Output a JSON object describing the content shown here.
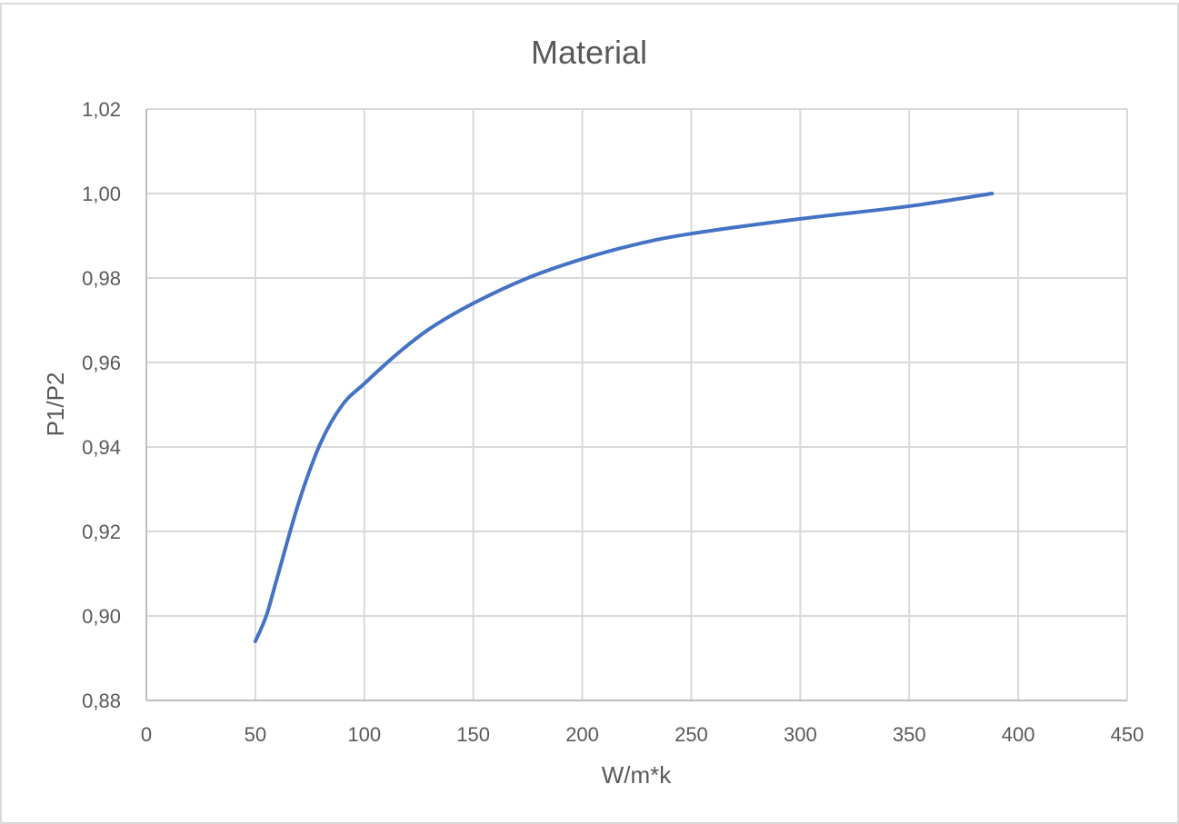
{
  "chart_data": {
    "type": "line",
    "title": "Material",
    "xlabel": "W/m*k",
    "ylabel": "P1/P2",
    "xlim": [
      0,
      450
    ],
    "ylim": [
      0.88,
      1.02
    ],
    "x_ticks": [
      0,
      50,
      100,
      150,
      200,
      250,
      300,
      350,
      400,
      450
    ],
    "x_tick_labels": [
      "0",
      "50",
      "100",
      "150",
      "200",
      "250",
      "300",
      "350",
      "400",
      "450"
    ],
    "y_ticks": [
      0.88,
      0.9,
      0.92,
      0.94,
      0.96,
      0.98,
      1.0,
      1.02
    ],
    "y_tick_labels": [
      "0,88",
      "0,90",
      "0,92",
      "0,94",
      "0,96",
      "0,98",
      "1,00",
      "1,02"
    ],
    "grid": true,
    "legend": "none",
    "series": [
      {
        "color": "#4472c4",
        "smooth": true,
        "x": [
          50,
          55,
          60,
          70,
          80,
          90,
          100,
          115,
          130,
          150,
          175,
          200,
          225,
          250,
          300,
          350,
          388
        ],
        "y": [
          0.894,
          0.9,
          0.909,
          0.927,
          0.941,
          0.95,
          0.955,
          0.962,
          0.968,
          0.974,
          0.98,
          0.9845,
          0.988,
          0.9905,
          0.994,
          0.997,
          1.0
        ]
      }
    ]
  }
}
